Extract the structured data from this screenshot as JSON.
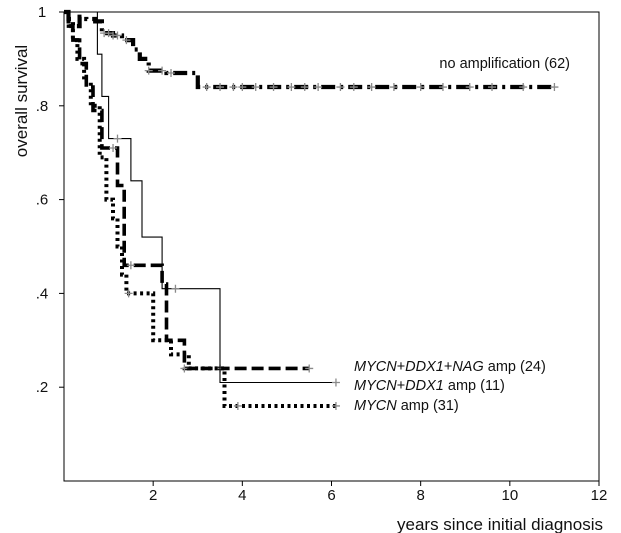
{
  "chart_data": {
    "type": "line",
    "subtype": "kaplan-meier survival",
    "xlabel": "years since initial diagnosis",
    "ylabel": "overall survival",
    "xlim": [
      0,
      12
    ],
    "ylim": [
      0,
      1
    ],
    "x_ticks": [
      {
        "value": 2,
        "label": "2"
      },
      {
        "value": 4,
        "label": "4"
      },
      {
        "value": 6,
        "label": "6"
      },
      {
        "value": 8,
        "label": "8"
      },
      {
        "value": 10,
        "label": "10"
      },
      {
        "value": 12,
        "label": "12"
      }
    ],
    "y_ticks": [
      {
        "value": 0.2,
        "label": ".2"
      },
      {
        "value": 0.4,
        "label": ".4"
      },
      {
        "value": 0.6,
        "label": ".6"
      },
      {
        "value": 0.8,
        "label": ".8"
      },
      {
        "value": 1.0,
        "label": "1"
      }
    ],
    "grid": false,
    "series": [
      {
        "name": "no amplification (62)",
        "label_parts": [
          {
            "text": "no amplification (62)",
            "italic": false
          }
        ],
        "style": "dash-dot-thick",
        "color": "#000000",
        "steps": [
          [
            0,
            1.0
          ],
          [
            0.1,
            0.985
          ],
          [
            0.2,
            0.97
          ],
          [
            0.35,
            0.99
          ],
          [
            0.5,
            0.985
          ],
          [
            0.7,
            0.98
          ],
          [
            0.85,
            0.955
          ],
          [
            1.1,
            0.95
          ],
          [
            1.3,
            0.94
          ],
          [
            1.55,
            0.92
          ],
          [
            1.7,
            0.9
          ],
          [
            1.9,
            0.875
          ],
          [
            2.3,
            0.87
          ],
          [
            2.9,
            0.87
          ],
          [
            3.0,
            0.84
          ],
          [
            11.0,
            0.84
          ]
        ],
        "censor_x": [
          0.9,
          1.0,
          1.1,
          1.2,
          1.4,
          1.9,
          2.2,
          2.4,
          3.2,
          3.5,
          3.8,
          4.0,
          4.3,
          4.7,
          5.1,
          5.4,
          5.7,
          6.2,
          6.5,
          6.9,
          7.4,
          8.0,
          8.5,
          9.1,
          9.6,
          10.3,
          11.0
        ]
      },
      {
        "name": "MYCN+DDX1+NAG amp (24)",
        "label_parts": [
          {
            "text": "MYCN",
            "italic": true
          },
          {
            "text": "+",
            "italic": false
          },
          {
            "text": "DDX1",
            "italic": true
          },
          {
            "text": "+",
            "italic": false
          },
          {
            "text": "NAG",
            "italic": true
          },
          {
            "text": " amp (24)",
            "italic": false
          }
        ],
        "style": "dashed-thick",
        "color": "#000000",
        "steps": [
          [
            0,
            1.0
          ],
          [
            0.1,
            0.97
          ],
          [
            0.2,
            0.94
          ],
          [
            0.35,
            0.89
          ],
          [
            0.5,
            0.84
          ],
          [
            0.65,
            0.79
          ],
          [
            0.85,
            0.71
          ],
          [
            1.2,
            0.63
          ],
          [
            1.35,
            0.46
          ],
          [
            2.2,
            0.42
          ],
          [
            2.3,
            0.3
          ],
          [
            2.7,
            0.24
          ],
          [
            5.5,
            0.24
          ]
        ],
        "censor_x": [
          1.1,
          1.5,
          2.7,
          3.5,
          5.5
        ]
      },
      {
        "name": "MYCN+DDX1 amp (11)",
        "label_parts": [
          {
            "text": "MYCN",
            "italic": true
          },
          {
            "text": "+",
            "italic": false
          },
          {
            "text": "DDX1",
            "italic": true
          },
          {
            "text": " amp (11)",
            "italic": false
          }
        ],
        "style": "solid-thin",
        "color": "#000000",
        "steps": [
          [
            0,
            1.0
          ],
          [
            0.75,
            0.91
          ],
          [
            0.85,
            0.82
          ],
          [
            1.0,
            0.73
          ],
          [
            1.5,
            0.64
          ],
          [
            1.75,
            0.52
          ],
          [
            2.2,
            0.41
          ],
          [
            3.5,
            0.21
          ],
          [
            6.1,
            0.21
          ]
        ],
        "censor_x": [
          1.2,
          2.5,
          6.1
        ]
      },
      {
        "name": "MYCN amp (31)",
        "label_parts": [
          {
            "text": "MYCN",
            "italic": true
          },
          {
            "text": " amp (31)",
            "italic": false
          }
        ],
        "style": "dotted-thick",
        "color": "#000000",
        "steps": [
          [
            0,
            1.0
          ],
          [
            0.1,
            0.97
          ],
          [
            0.2,
            0.94
          ],
          [
            0.3,
            0.9
          ],
          [
            0.45,
            0.85
          ],
          [
            0.6,
            0.8
          ],
          [
            0.8,
            0.69
          ],
          [
            0.95,
            0.6
          ],
          [
            1.1,
            0.56
          ],
          [
            1.2,
            0.5
          ],
          [
            1.3,
            0.44
          ],
          [
            1.4,
            0.4
          ],
          [
            2.0,
            0.3
          ],
          [
            2.4,
            0.27
          ],
          [
            2.8,
            0.24
          ],
          [
            3.6,
            0.16
          ],
          [
            6.1,
            0.16
          ]
        ],
        "censor_x": [
          1.45,
          3.9,
          6.1
        ]
      }
    ]
  }
}
